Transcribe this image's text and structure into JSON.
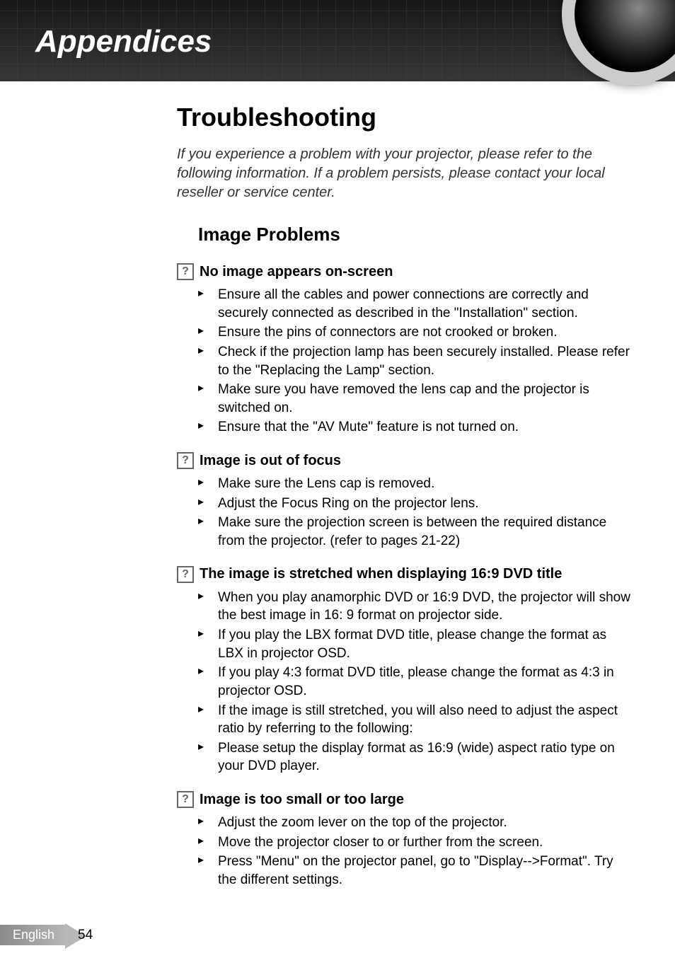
{
  "header": {
    "title": "Appendices"
  },
  "main": {
    "title": "Troubleshooting",
    "intro": "If you experience a problem with your projector, please refer to the following information. If a problem persists, please contact your local reseller or service center.",
    "section_title": "Image Problems",
    "blocks": [
      {
        "heading": "No image appears on-screen",
        "items": [
          "Ensure all the cables and power connections are correctly and securely connected as described in the \"Installation\" section.",
          "Ensure the pins of connectors are not crooked or broken.",
          "Check if the projection lamp has been securely installed. Please refer to the \"Replacing the Lamp\" section.",
          "Make sure you have removed the lens cap and the projector is switched on.",
          " Ensure that the \"AV Mute\" feature is not turned on."
        ]
      },
      {
        "heading": "Image is out of focus",
        "items": [
          "Make sure the Lens cap is removed.",
          "Adjust the Focus Ring on the projector lens.",
          "Make sure the projection screen is between the required distance from the projector. (refer to pages 21-22)"
        ]
      },
      {
        "heading": "The image is stretched when displaying 16:9 DVD title",
        "items": [
          "When you play anamorphic DVD or 16:9 DVD, the projector will show the best image in 16: 9 format on projector side.",
          "If you play the LBX format DVD title, please change the format as LBX in projector OSD.",
          "If you play 4:3 format DVD title, please change the format as 4:3 in projector OSD.",
          "If the image is still stretched, you will also need to adjust the aspect ratio by referring to the following:",
          "Please setup the display format as 16:9 (wide) aspect ratio type on your DVD player."
        ]
      },
      {
        "heading": "Image is too small or too large",
        "items": [
          "Adjust the zoom lever on the top of the projector.",
          "Move the projector closer to or further from the screen.",
          "Press \"Menu\" on the projector panel, go to \"Display-->Format\". Try the different settings."
        ]
      }
    ]
  },
  "footer": {
    "language": "English",
    "page": "54"
  },
  "colors": {
    "header_grid": "#2a2a2a",
    "text": "#000000",
    "footer_tab": "#a0a0a0"
  }
}
